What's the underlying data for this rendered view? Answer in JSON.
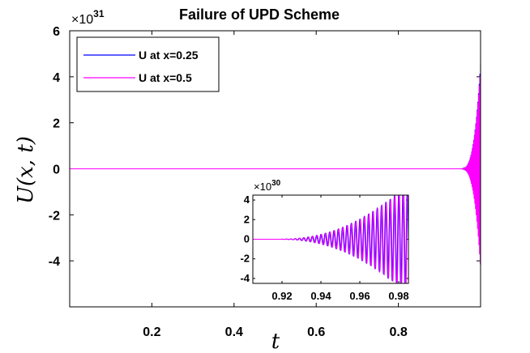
{
  "chart_data": [
    {
      "type": "line",
      "title": "Failure of UPD Scheme",
      "xlabel": "t",
      "ylabel": "U(x, t)",
      "exponent_label": "×10",
      "exponent_power": "31",
      "scale": 1e+31,
      "xlim": [
        0,
        1
      ],
      "ylim": [
        -6,
        6
      ],
      "xticks": [
        0.2,
        0.4,
        0.6,
        0.8
      ],
      "xtick_labels": [
        "0.2",
        "0.4",
        "0.6",
        "0.8"
      ],
      "yticks": [
        -4,
        -2,
        0,
        2,
        4,
        6
      ],
      "ytick_labels": [
        "-4",
        "-2",
        "0",
        "2",
        "4",
        "6"
      ],
      "grid": false,
      "legend_position": "top-left",
      "series": [
        {
          "name": "U at x=0.25",
          "color": "#0000ff"
        },
        {
          "name": "U at x=0.5",
          "color": "#ff00ff"
        }
      ],
      "behavior": "flat at 0 until t≈0.95, then oscillations growing to about ±4.5e31 at t=1"
    },
    {
      "type": "line",
      "role": "inset",
      "exponent_label": "×10",
      "exponent_power": "30",
      "scale": 1e+30,
      "xlim": [
        0.905,
        0.985
      ],
      "ylim": [
        -4.5,
        4.5
      ],
      "xticks": [
        0.92,
        0.94,
        0.96,
        0.98
      ],
      "xtick_labels": [
        "0.92",
        "0.94",
        "0.96",
        "0.98"
      ],
      "yticks": [
        -4,
        -2,
        0,
        2,
        4
      ],
      "ytick_labels": [
        "-4",
        "-2",
        "0",
        "2",
        "4"
      ],
      "behavior": "zero until t≈0.92, oscillations growing beyond ±4.5e30 near t=0.98"
    }
  ]
}
